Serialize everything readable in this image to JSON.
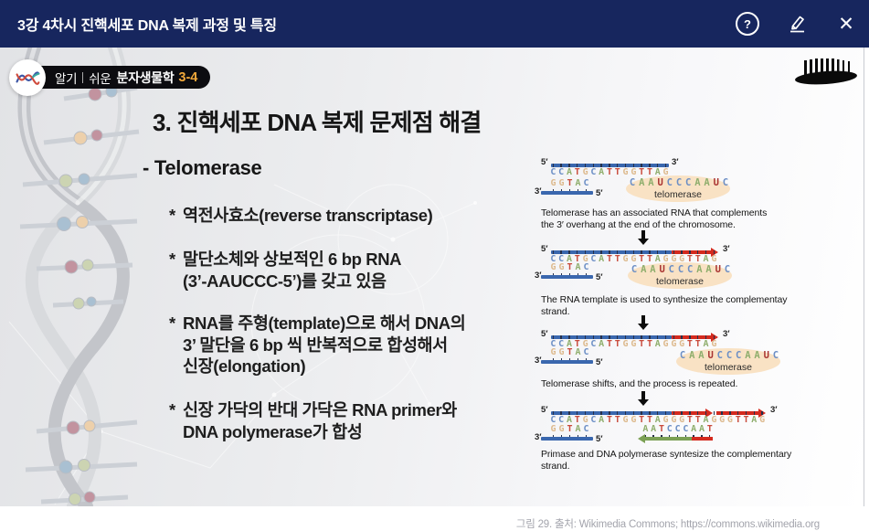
{
  "header": {
    "title": "3강 4차시 진핵세포 DNA 복제 과정 및 특징",
    "bg_color": "#17265e",
    "icons": {
      "help_glyph": "?",
      "close_glyph": "✕"
    }
  },
  "logo": {
    "word1": "알기",
    "word2": "쉬운",
    "brand": "분자생물학",
    "episode": "3-4",
    "episode_color": "#f2a93b"
  },
  "slide": {
    "title": "3. 진핵세포 DNA 복제 문제점 해결",
    "subtitle": "- Telomerase",
    "bullet_marker": "*",
    "bullets": [
      {
        "text": "역전사효소(reverse transcriptase)"
      },
      {
        "text": "말단소체와 상보적인 6 bp RNA\n(3’-AAUCCC-5’)를 갖고 있음"
      },
      {
        "text": "RNA를 주형(template)으로 해서 DNA의\n3’ 말단을 6 bp 씩 반복적으로 합성해서\n신장(elongation)"
      },
      {
        "text": "신장 가닥의 반대 가닥은 RNA primer와\nDNA polymerase가 합성"
      }
    ]
  },
  "diagram": {
    "labels": {
      "five": "5′",
      "three": "3′"
    },
    "base_colors": {
      "A": "#8fae6d",
      "T": "#c94a3b",
      "G": "#ddba8e",
      "C": "#6b8ec5",
      "U": "#a93331"
    },
    "strand_blue": "#3a67ae",
    "extension_red": "#d42a1e",
    "primer_green": "#7ba054",
    "enzyme_fill": "#f9e2c4",
    "panels": [
      {
        "top_seq": "CCATGCATTGGTTAG",
        "bottom_seq": "GGTAC",
        "rna_seq": "CAAUCCCAAUC",
        "enzyme_label": "telomerase",
        "caption": "Telomerase has an associated RNA that complements\nthe 3′ overhang at the end of the chromosome."
      },
      {
        "top_seq": "CCATGCATTGGTTAGGGTTAG",
        "bottom_seq": "GGTAC",
        "rna_seq": "CAAUCCCAAUC",
        "enzyme_label": "telomerase",
        "caption": "The RNA template is used to synthesize the complementay\nstrand."
      },
      {
        "top_seq": "CCATGCATTGGTTAG GGTTAG",
        "top_seq_flat": "CCATGCATTGGTTAGGGTTAG",
        "bottom_seq": "GGTAC",
        "rna_seq": "CAAUCCCAAUC",
        "enzyme_label": "telomerase",
        "caption": "Telomerase shifts, and the process is repeated."
      },
      {
        "top_seq": "CCATGCATTGGTTAGGGTTAGGGTTAG",
        "bottom_seq": "GGTAC",
        "primer_seq": "AATCCCAAT",
        "caption": "Primase and DNA polymerase syntesize the complementary\nstrand."
      }
    ],
    "source": "그림 29. 출처: Wikimedia Commons; https://commons.wikimedia.org"
  }
}
